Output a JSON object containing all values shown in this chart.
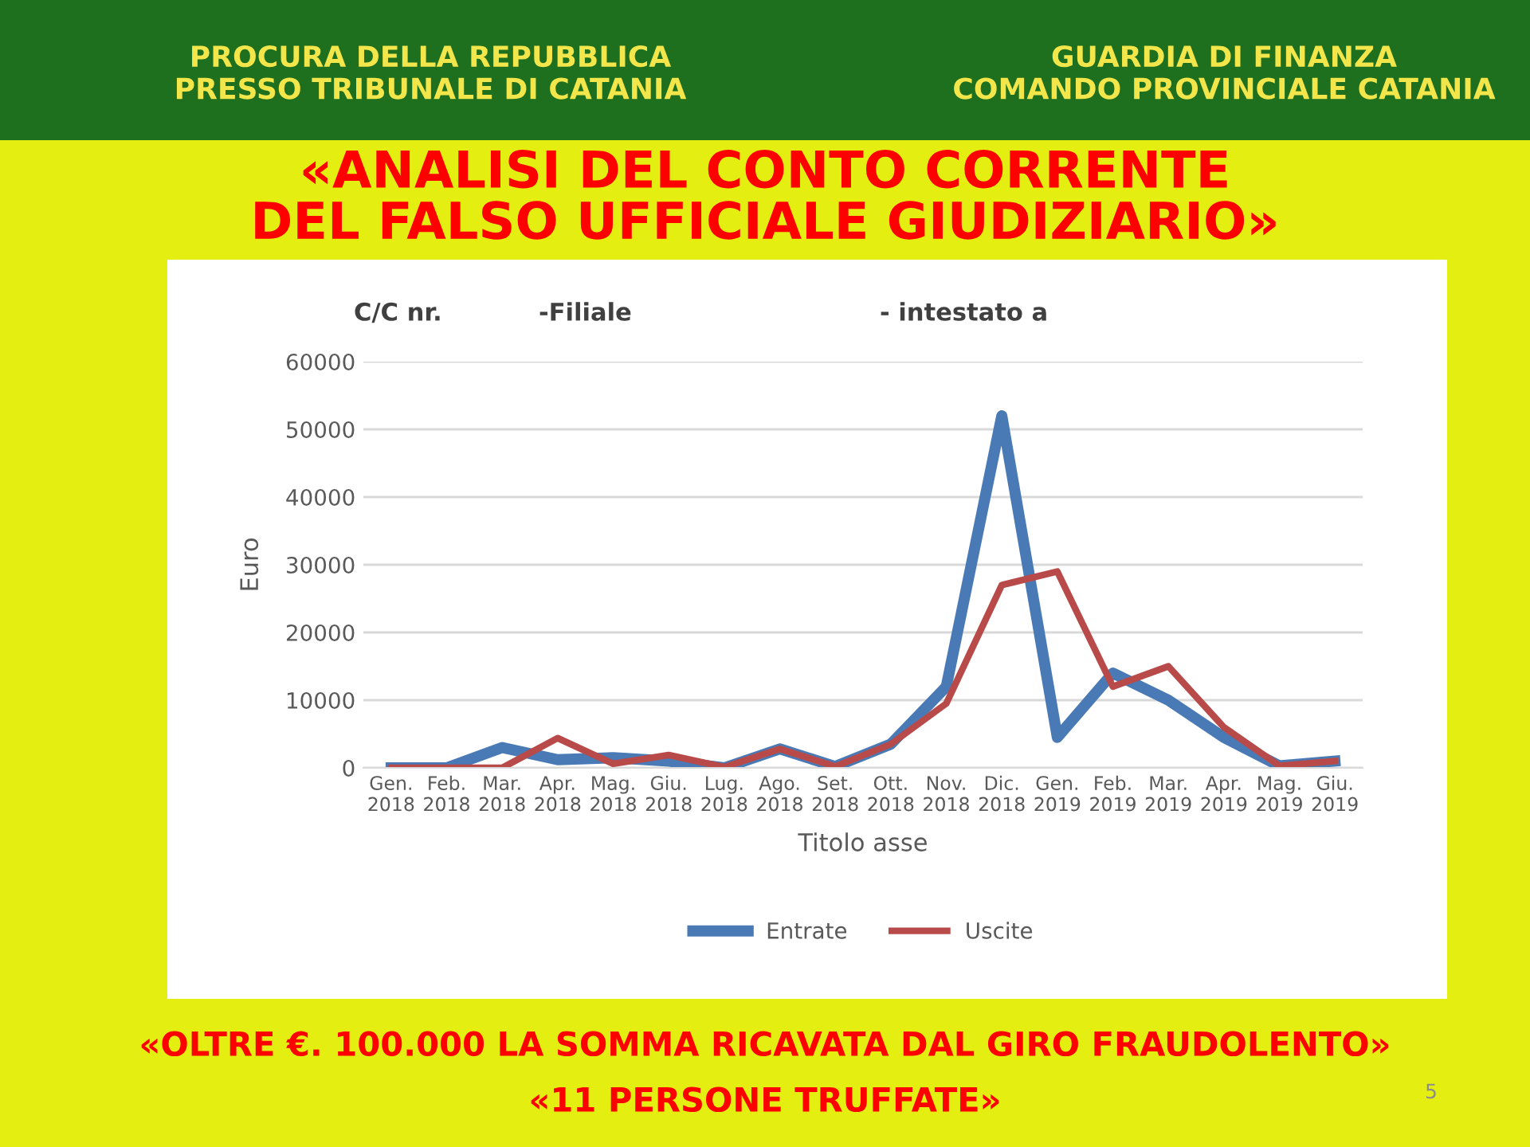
{
  "chart_data": {
    "type": "line",
    "title": "«ANALISI DEL CONTO CORRENTE\nDEL FALSO UFFICIALE GIUDIZIARIO»",
    "xlabel": "Titolo asse",
    "ylabel": "Euro",
    "categories": [
      "Gen.\n2018",
      "Feb.\n2018",
      "Mar.\n2018",
      "Apr.\n2018",
      "Mag.\n2018",
      "Giu.\n2018",
      "Lug.\n2018",
      "Ago.\n2018",
      "Set.\n2018",
      "Ott.\n2018",
      "Nov.\n2018",
      "Dic.\n2018",
      "Gen.\n2019",
      "Feb.\n2019",
      "Mar.\n2019",
      "Apr.\n2019",
      "Mag.\n2019",
      "Giu.\n2019"
    ],
    "series": [
      {
        "name": "Entrate",
        "color": "#4a7ab5",
        "values": [
          0,
          0,
          3000,
          1200,
          1500,
          1000,
          0,
          2800,
          200,
          3500,
          12000,
          52000,
          4500,
          14000,
          10000,
          4500,
          300,
          1000
        ]
      },
      {
        "name": "Uscite",
        "color": "#b84a4a",
        "values": [
          0,
          0,
          0,
          4400,
          600,
          1900,
          100,
          2800,
          200,
          3500,
          9500,
          27000,
          29000,
          12000,
          15000,
          6000,
          300,
          1000
        ]
      }
    ],
    "ylim": [
      0,
      60000
    ],
    "yticks": [
      0,
      10000,
      20000,
      30000,
      40000,
      50000,
      60000
    ],
    "grid": "y",
    "legend": "bottom",
    "marker": "none",
    "line_style": "solid",
    "annotations": [
      "PROCURA DELLA REPUBBLICA\nPRESSO TRIBUNALE DI CATANIA",
      "GUARDIA DI FINANZA\nCOMANDO PROVINCIALE CATANIA",
      "C/C nr.",
      "-Filiale",
      "- intestato a",
      "«OLTRE €. 100.000 LA SOMMA RICAVATA DAL GIRO FRAUDOLENTO»",
      "«11 PERSONE TRUFFATE»",
      "5"
    ]
  }
}
